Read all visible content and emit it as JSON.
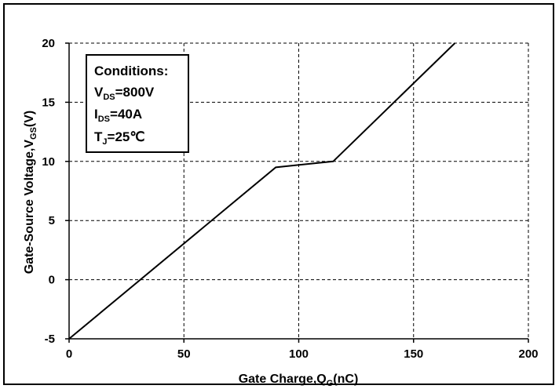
{
  "chart_data": {
    "type": "line",
    "xlabel": {
      "main": "Gate Charge,Q",
      "sub": "G",
      "tail": "(nC)"
    },
    "ylabel": {
      "main": "Gate-Source Voltage,V",
      "sub": "GS",
      "tail": "(V)"
    },
    "xlim": [
      0,
      200
    ],
    "ylim": [
      -5,
      20
    ],
    "xticks": [
      0,
      50,
      100,
      150,
      200
    ],
    "yticks": [
      -5,
      0,
      5,
      10,
      15,
      20
    ],
    "grid": true,
    "series": [
      {
        "x": [
          0,
          90,
          115,
          168
        ],
        "y": [
          -5,
          9.5,
          10,
          20
        ]
      }
    ],
    "conditions": {
      "heading": "Conditions:",
      "lines": [
        {
          "main": "V",
          "sub": "DS",
          "tail": "=800V"
        },
        {
          "main": "I",
          "sub": "DS",
          "tail": "=40A"
        },
        {
          "main": "T",
          "sub": "J",
          "tail": "=25℃"
        }
      ]
    }
  }
}
